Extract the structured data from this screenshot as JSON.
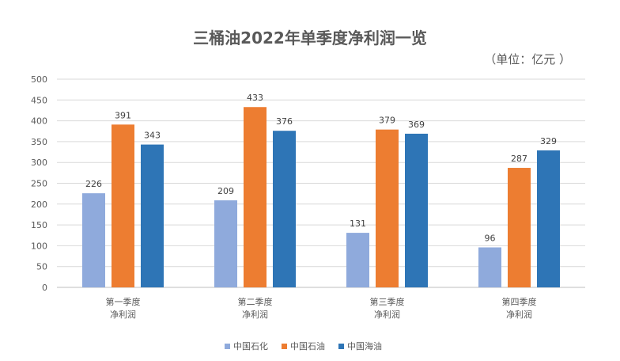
{
  "chart_data": {
    "type": "bar",
    "title": "三桶油2022年单季度净利润一览",
    "unit_note": "（单位：亿元 ）",
    "categories": [
      [
        "第一季度",
        "净利润"
      ],
      [
        "第二季度",
        "净利润"
      ],
      [
        "第三季度",
        "净利润"
      ],
      [
        "第四季度",
        "净利润"
      ]
    ],
    "series": [
      {
        "name": "中国石化",
        "color": "#8faadc",
        "values": [
          226,
          209,
          131,
          96
        ]
      },
      {
        "name": "中国石油",
        "color": "#ed7d31",
        "values": [
          391,
          433,
          379,
          287
        ]
      },
      {
        "name": "中国海油",
        "color": "#2e75b6",
        "values": [
          343,
          376,
          369,
          329
        ]
      }
    ],
    "ylim": [
      0,
      500
    ],
    "yticks": [
      0,
      50,
      100,
      150,
      200,
      250,
      300,
      350,
      400,
      450,
      500
    ],
    "grid": true,
    "legend_position": "bottom"
  }
}
